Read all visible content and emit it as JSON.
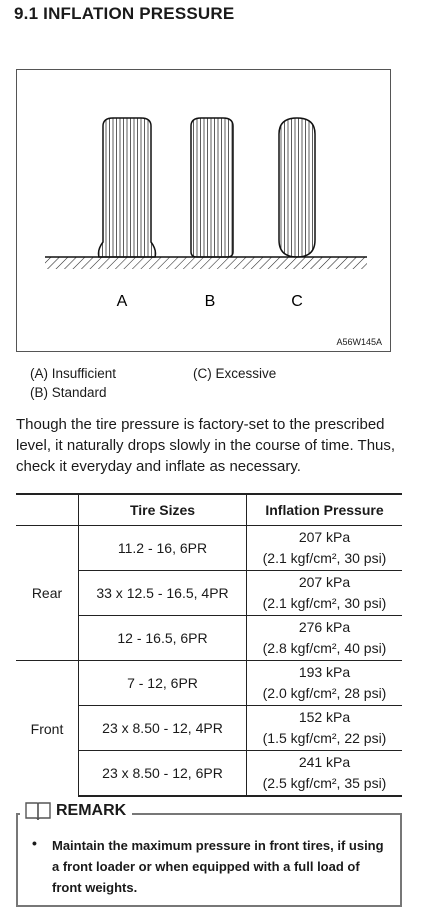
{
  "heading": "9.1  INFLATION PRESSURE",
  "figure": {
    "labels": [
      "A",
      "B",
      "C"
    ],
    "code": "A56W145A"
  },
  "legend": {
    "a": "(A) Insufficient",
    "b": "(B) Standard",
    "c": "(C) Excessive"
  },
  "paragraph": "Though the tire pressure is factory-set to the prescribed level, it naturally drops slowly in the course of time. Thus, check it everyday and inflate as necessary.",
  "table": {
    "headers": [
      "",
      "Tire Sizes",
      "Inflation Pressure"
    ],
    "groups": [
      {
        "name": "Rear",
        "rows": [
          {
            "size": "11.2 - 16, 6PR",
            "kpa": "207 kPa",
            "detail": "(2.1 kgf/cm², 30 psi)"
          },
          {
            "size": "33 x 12.5 - 16.5, 4PR",
            "kpa": "207 kPa",
            "detail": "(2.1 kgf/cm², 30 psi)"
          },
          {
            "size": "12 - 16.5, 6PR",
            "kpa": "276 kPa",
            "detail": "(2.8 kgf/cm², 40 psi)"
          }
        ]
      },
      {
        "name": "Front",
        "rows": [
          {
            "size": "7 - 12, 6PR",
            "kpa": "193 kPa",
            "detail": "(2.0 kgf/cm², 28 psi)"
          },
          {
            "size": "23 x 8.50 - 12, 4PR",
            "kpa": "152 kPa",
            "detail": "(1.5 kgf/cm², 22 psi)"
          },
          {
            "size": "23 x 8.50 - 12, 6PR",
            "kpa": "241 kPa",
            "detail": "(2.5 kgf/cm², 35 psi)"
          }
        ]
      }
    ]
  },
  "remark": {
    "title": "REMARK",
    "bullet": "•",
    "text": "Maintain the maximum pressure in front tires, if using a front loader or when equipped with a full load of front weights."
  }
}
